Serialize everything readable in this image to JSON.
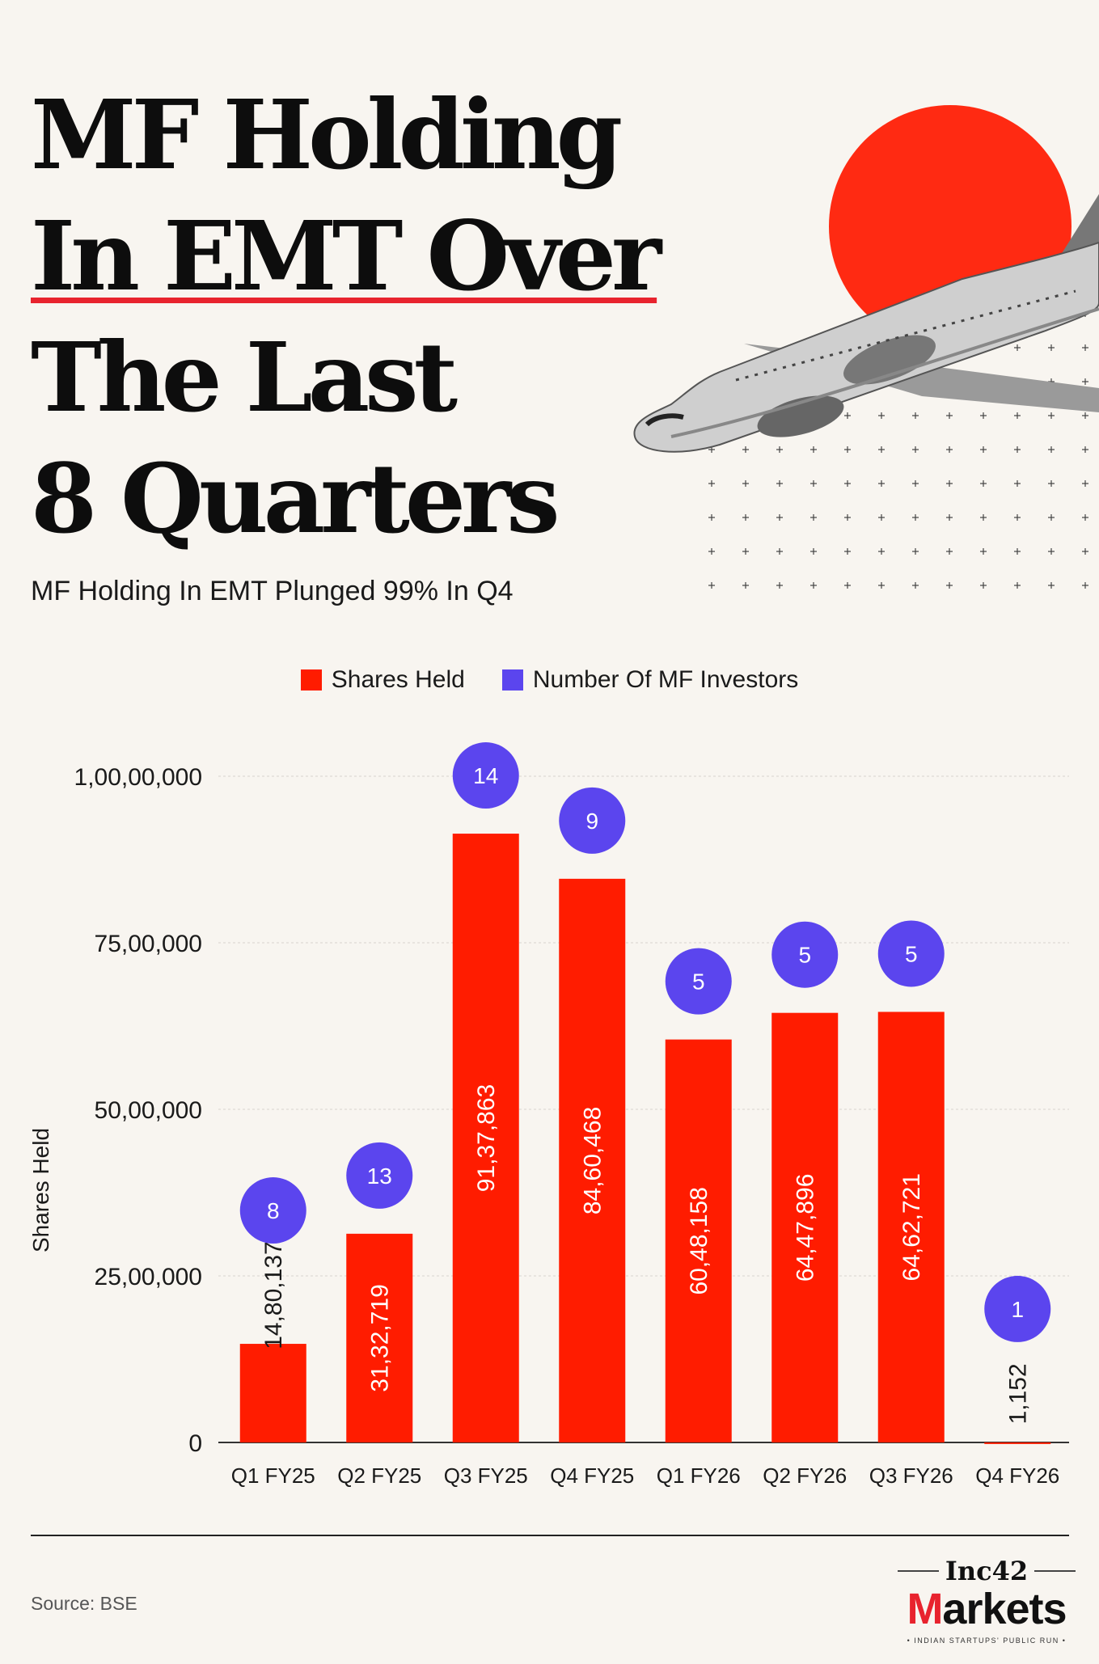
{
  "title": {
    "line1": "MF Holding",
    "line2": "In EMT Over",
    "line3": "The Last",
    "line4": "8 Quarters"
  },
  "subtitle": "MF Holding In EMT Plunged 99% In Q4",
  "legend": [
    {
      "label": "Shares Held",
      "color": "#ff1c00"
    },
    {
      "label": "Number Of MF Investors",
      "color": "#5b45ee"
    }
  ],
  "chart_data": {
    "type": "bar",
    "categories": [
      "Q1 FY25",
      "Q2 FY25",
      "Q3 FY25",
      "Q4 FY25",
      "Q1 FY26",
      "Q2 FY26",
      "Q3 FY26",
      "Q4 FY26"
    ],
    "series": [
      {
        "name": "Shares Held",
        "values": [
          1480137,
          3132719,
          9137863,
          8460468,
          6048158,
          6447896,
          6462721,
          1152
        ],
        "labels": [
          "14,80,137",
          "31,32,719",
          "91,37,863",
          "84,60,468",
          "60,48,158",
          "64,47,896",
          "64,62,721",
          "1,152"
        ],
        "color": "#ff1c00"
      },
      {
        "name": "Number Of MF Investors",
        "values": [
          8,
          13,
          14,
          9,
          5,
          5,
          5,
          1
        ],
        "color": "#5b45ee"
      }
    ],
    "ylabel": "Shares Held",
    "ylim": [
      0,
      10000000
    ],
    "yticks": [
      0,
      2500000,
      5000000,
      7500000,
      10000000
    ],
    "ytick_labels": [
      "0",
      "25,00,000",
      "50,00,000",
      "75,00,000",
      "1,00,00,000"
    ],
    "grid": true,
    "legend_position": "top-center"
  },
  "footer": {
    "source": "Source: BSE",
    "logo_top": "Inc42",
    "logo_main_first": "M",
    "logo_main_rest": "arkets",
    "logo_tagline": "• INDIAN STARTUPS' PUBLIC RUN •"
  },
  "colors": {
    "background": "#f8f5f0",
    "accent_red": "#e8232e",
    "bar_red": "#ff1c00",
    "investor_purple": "#5b45ee"
  }
}
